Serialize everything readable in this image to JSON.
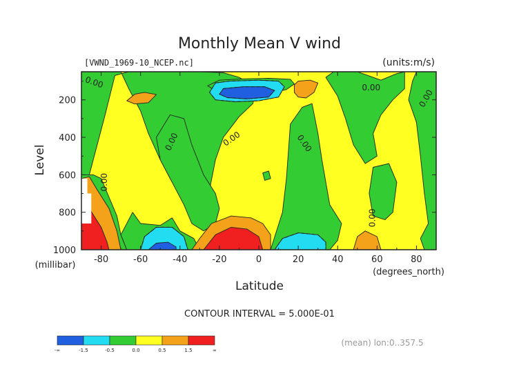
{
  "chart_data": {
    "type": "contour",
    "title": "Monthly Mean V wind",
    "file_label": "[VWND_1969-10_NCEP.nc]",
    "units_label": "(units:m/s)",
    "xlabel": "Latitude",
    "x_unit_label": "(degrees_north)",
    "ylabel": "Level",
    "y_unit_label": "(millibar)",
    "xlim": [
      -90,
      90
    ],
    "ylim": [
      1000,
      50
    ],
    "x_ticks": [
      -80,
      -60,
      -40,
      -20,
      0,
      20,
      40,
      60,
      80
    ],
    "y_ticks": [
      200,
      400,
      600,
      800,
      1000
    ],
    "contour_interval_text": "CONTOUR INTERVAL = 5.000E-01",
    "subset_label": "(mean) lon:0..357.5",
    "zero_labels": [
      {
        "text": "0.00",
        "lat": -84,
        "lev": 120,
        "rot": 20
      },
      {
        "text": "0.00",
        "lat": 57,
        "lev": 150,
        "rot": 0
      },
      {
        "text": "0.00",
        "lat": 86,
        "lev": 200,
        "rot": -60
      },
      {
        "text": "0.00",
        "lat": -43,
        "lev": 430,
        "rot": -65
      },
      {
        "text": "0.00",
        "lat": -13,
        "lev": 420,
        "rot": -35
      },
      {
        "text": "0.00",
        "lat": 22,
        "lev": 440,
        "rot": 55
      },
      {
        "text": "0.00",
        "lat": -77,
        "lev": 640,
        "rot": -90
      },
      {
        "text": "0.00",
        "lat": 59,
        "lev": 830,
        "rot": -90
      }
    ],
    "colorbar": {
      "colors": [
        "#1f5fe0",
        "#22ddf2",
        "#33cc33",
        "#ffff22",
        "#f5a21b",
        "#f02020"
      ],
      "labels": [
        "-∞",
        "-1.5",
        "-0.5",
        "0.0",
        "0.5",
        "1.5",
        "∞"
      ]
    },
    "level_colors": {
      "lt_-1.5": "#1f5fe0",
      "-1.5_to_-0.5": "#22ddf2",
      "-0.5_to_0": "#33cc33",
      "0_to_0.5": "#ffff22",
      "0.5_to_1.5": "#f5a21b",
      "gt_1.5": "#f02020"
    },
    "regions": [
      {
        "name": "green-left-top",
        "color": "#33cc33",
        "pts": [
          [
            -90,
            50
          ],
          [
            -70,
            50
          ],
          [
            -66,
            140
          ],
          [
            -60,
            260
          ],
          [
            -56,
            380
          ],
          [
            -50,
            520
          ],
          [
            -44,
            640
          ],
          [
            -38,
            720
          ],
          [
            -30,
            760
          ],
          [
            -25,
            680
          ],
          [
            -22,
            520
          ],
          [
            -18,
            400
          ],
          [
            -10,
            290
          ],
          [
            -3,
            220
          ],
          [
            -2,
            170
          ],
          [
            -3,
            120
          ],
          [
            -10,
            80
          ],
          [
            -18,
            55
          ],
          [
            -30,
            50
          ],
          [
            -52,
            50
          ],
          [
            -66,
            50
          ],
          [
            -73,
            70
          ],
          [
            -78,
            280
          ],
          [
            -84,
            520
          ],
          [
            -86,
            600
          ],
          [
            -90,
            600
          ]
        ]
      },
      {
        "name": "green-left-lower",
        "color": "#33cc33",
        "pts": [
          [
            -90,
            600
          ],
          [
            -84,
            600
          ],
          [
            -80,
            620
          ],
          [
            -76,
            720
          ],
          [
            -72,
            820
          ],
          [
            -70,
            920
          ],
          [
            -67,
            1000
          ],
          [
            -90,
            1000
          ]
        ]
      },
      {
        "name": "green-bottom-left",
        "color": "#33cc33",
        "pts": [
          [
            -70,
            920
          ],
          [
            -64,
            800
          ],
          [
            -60,
            860
          ],
          [
            -50,
            870
          ],
          [
            -44,
            830
          ],
          [
            -40,
            900
          ],
          [
            -33,
            940
          ],
          [
            -30,
            1000
          ],
          [
            -67,
            1000
          ]
        ]
      },
      {
        "name": "green-center-south",
        "color": "#33cc33",
        "pts": [
          [
            -45,
            280
          ],
          [
            -38,
            300
          ],
          [
            -34,
            440
          ],
          [
            -28,
            600
          ],
          [
            -22,
            700
          ],
          [
            -20,
            780
          ],
          [
            -22,
            860
          ],
          [
            -28,
            900
          ],
          [
            -34,
            860
          ],
          [
            -38,
            760
          ],
          [
            -44,
            640
          ],
          [
            -50,
            520
          ],
          [
            -52,
            400
          ]
        ]
      },
      {
        "name": "green-upper-mid",
        "color": "#33cc33",
        "pts": [
          [
            -20,
            95
          ],
          [
            -8,
            88
          ],
          [
            5,
            85
          ],
          [
            16,
            90
          ],
          [
            18,
            115
          ],
          [
            14,
            145
          ],
          [
            8,
            160
          ],
          [
            -2,
            165
          ],
          [
            -12,
            165
          ],
          [
            -22,
            150
          ],
          [
            -26,
            125
          ]
        ]
      },
      {
        "name": "green-center-north",
        "color": "#33cc33",
        "pts": [
          [
            16,
            330
          ],
          [
            22,
            240
          ],
          [
            27,
            220
          ],
          [
            30,
            380
          ],
          [
            32,
            520
          ],
          [
            34,
            640
          ],
          [
            36,
            760
          ],
          [
            42,
            860
          ],
          [
            40,
            950
          ],
          [
            36,
            1000
          ],
          [
            6,
            1000
          ],
          [
            9,
            900
          ],
          [
            12,
            800
          ],
          [
            14,
            620
          ],
          [
            15,
            480
          ]
        ]
      },
      {
        "name": "green-north-upper",
        "color": "#33cc33",
        "pts": [
          [
            38,
            50
          ],
          [
            50,
            50
          ],
          [
            62,
            95
          ],
          [
            70,
            60
          ],
          [
            74,
            50
          ],
          [
            74,
            140
          ],
          [
            68,
            200
          ],
          [
            62,
            280
          ],
          [
            58,
            380
          ],
          [
            60,
            500
          ],
          [
            54,
            540
          ],
          [
            48,
            440
          ],
          [
            44,
            300
          ],
          [
            40,
            180
          ],
          [
            34,
            80
          ]
        ]
      },
      {
        "name": "green-north-right",
        "color": "#33cc33",
        "pts": [
          [
            80,
            50
          ],
          [
            90,
            50
          ],
          [
            90,
            1000
          ],
          [
            84,
            1000
          ],
          [
            82,
            940
          ],
          [
            86,
            860
          ],
          [
            84,
            700
          ],
          [
            82,
            500
          ],
          [
            80,
            320
          ],
          [
            76,
            200
          ],
          [
            78,
            100
          ]
        ]
      },
      {
        "name": "green-north-lower",
        "color": "#33cc33",
        "pts": [
          [
            58,
            560
          ],
          [
            66,
            540
          ],
          [
            70,
            640
          ],
          [
            68,
            800
          ],
          [
            64,
            840
          ],
          [
            58,
            820
          ],
          [
            56,
            700
          ]
        ]
      },
      {
        "name": "orange-upper-mid",
        "color": "#f5a21b",
        "pts": [
          [
            18,
            120
          ],
          [
            20,
            100
          ],
          [
            26,
            95
          ],
          [
            30,
            110
          ],
          [
            28,
            160
          ],
          [
            24,
            190
          ],
          [
            20,
            185
          ],
          [
            18,
            160
          ]
        ]
      },
      {
        "name": "orange-left",
        "color": "#f5a21b",
        "pts": [
          [
            -63,
            170
          ],
          [
            -58,
            160
          ],
          [
            -52,
            172
          ],
          [
            -56,
            215
          ],
          [
            -63,
            222
          ],
          [
            -67,
            205
          ]
        ]
      },
      {
        "name": "cyan-upper",
        "color": "#22ddf2",
        "pts": [
          [
            -22,
            110
          ],
          [
            -15,
            100
          ],
          [
            0,
            95
          ],
          [
            10,
            100
          ],
          [
            13,
            130
          ],
          [
            10,
            185
          ],
          [
            0,
            205
          ],
          [
            -12,
            210
          ],
          [
            -22,
            200
          ],
          [
            -25,
            160
          ]
        ]
      },
      {
        "name": "blue-upper",
        "color": "#1f5fe0",
        "pts": [
          [
            -18,
            140
          ],
          [
            -8,
            130
          ],
          [
            3,
            130
          ],
          [
            8,
            150
          ],
          [
            5,
            185
          ],
          [
            -6,
            195
          ],
          [
            -16,
            188
          ],
          [
            -20,
            170
          ]
        ]
      },
      {
        "name": "orange-south-sfc",
        "color": "#f5a21b",
        "pts": [
          [
            -34,
            1000
          ],
          [
            -30,
            940
          ],
          [
            -24,
            860
          ],
          [
            -14,
            820
          ],
          [
            -4,
            830
          ],
          [
            2,
            860
          ],
          [
            6,
            920
          ],
          [
            6,
            1000
          ]
        ]
      },
      {
        "name": "red-south-sfc",
        "color": "#f02020",
        "pts": [
          [
            -28,
            1000
          ],
          [
            -22,
            920
          ],
          [
            -14,
            880
          ],
          [
            -6,
            890
          ],
          [
            0,
            930
          ],
          [
            2,
            1000
          ]
        ]
      },
      {
        "name": "cyan-south-sfc",
        "color": "#22ddf2",
        "pts": [
          [
            -60,
            1000
          ],
          [
            -58,
            930
          ],
          [
            -52,
            880
          ],
          [
            -44,
            880
          ],
          [
            -38,
            930
          ],
          [
            -36,
            1000
          ]
        ]
      },
      {
        "name": "blue-south-sfc",
        "color": "#1f5fe0",
        "pts": [
          [
            -56,
            1000
          ],
          [
            -52,
            965
          ],
          [
            -46,
            960
          ],
          [
            -42,
            985
          ],
          [
            -42,
            1000
          ]
        ]
      },
      {
        "name": "cyan-north-sfc",
        "color": "#22ddf2",
        "pts": [
          [
            8,
            1000
          ],
          [
            12,
            940
          ],
          [
            20,
            910
          ],
          [
            30,
            920
          ],
          [
            34,
            960
          ],
          [
            34,
            1000
          ]
        ]
      },
      {
        "name": "orange-north-sfc",
        "color": "#f5a21b",
        "pts": [
          [
            48,
            1000
          ],
          [
            50,
            930
          ],
          [
            54,
            900
          ],
          [
            60,
            930
          ],
          [
            62,
            1000
          ]
        ]
      },
      {
        "name": "orange-left-sfc",
        "color": "#f5a21b",
        "pts": [
          [
            -90,
            620
          ],
          [
            -86,
            610
          ],
          [
            -82,
            680
          ],
          [
            -76,
            780
          ],
          [
            -72,
            900
          ],
          [
            -70,
            1000
          ],
          [
            -90,
            1000
          ]
        ]
      },
      {
        "name": "red-left-sfc",
        "color": "#f02020",
        "pts": [
          [
            -90,
            720
          ],
          [
            -86,
            780
          ],
          [
            -80,
            880
          ],
          [
            -77,
            960
          ],
          [
            -76,
            1000
          ],
          [
            -90,
            1000
          ]
        ]
      },
      {
        "name": "green-small-dot",
        "color": "#33cc33",
        "pts": [
          [
            2,
            590
          ],
          [
            5,
            580
          ],
          [
            6,
            620
          ],
          [
            3,
            630
          ]
        ]
      }
    ],
    "missing_regions": [
      {
        "name": "missing-left-1",
        "pts": [
          [
            -90,
            620
          ],
          [
            -87,
            620
          ],
          [
            -87,
            700
          ],
          [
            -90,
            700
          ]
        ]
      },
      {
        "name": "missing-left-2",
        "pts": [
          [
            -90,
            700
          ],
          [
            -85,
            700
          ],
          [
            -85,
            860
          ],
          [
            -90,
            860
          ]
        ]
      }
    ],
    "dashed_contours": [
      [
        [
          -22,
          110
        ],
        [
          -15,
          100
        ],
        [
          0,
          95
        ],
        [
          10,
          100
        ],
        [
          13,
          130
        ],
        [
          10,
          185
        ],
        [
          0,
          205
        ],
        [
          -12,
          210
        ],
        [
          -22,
          200
        ],
        [
          -25,
          160
        ],
        [
          -22,
          110
        ]
      ],
      [
        [
          -18,
          140
        ],
        [
          -8,
          130
        ],
        [
          3,
          130
        ],
        [
          8,
          150
        ],
        [
          5,
          185
        ],
        [
          -6,
          195
        ],
        [
          -16,
          188
        ],
        [
          -20,
          170
        ],
        [
          -18,
          140
        ]
      ],
      [
        [
          -60,
          1000
        ],
        [
          -58,
          930
        ],
        [
          -52,
          880
        ],
        [
          -44,
          880
        ],
        [
          -38,
          930
        ],
        [
          -36,
          1000
        ]
      ],
      [
        [
          8,
          1000
        ],
        [
          12,
          940
        ],
        [
          20,
          910
        ],
        [
          30,
          920
        ],
        [
          34,
          960
        ],
        [
          34,
          1000
        ]
      ]
    ]
  }
}
